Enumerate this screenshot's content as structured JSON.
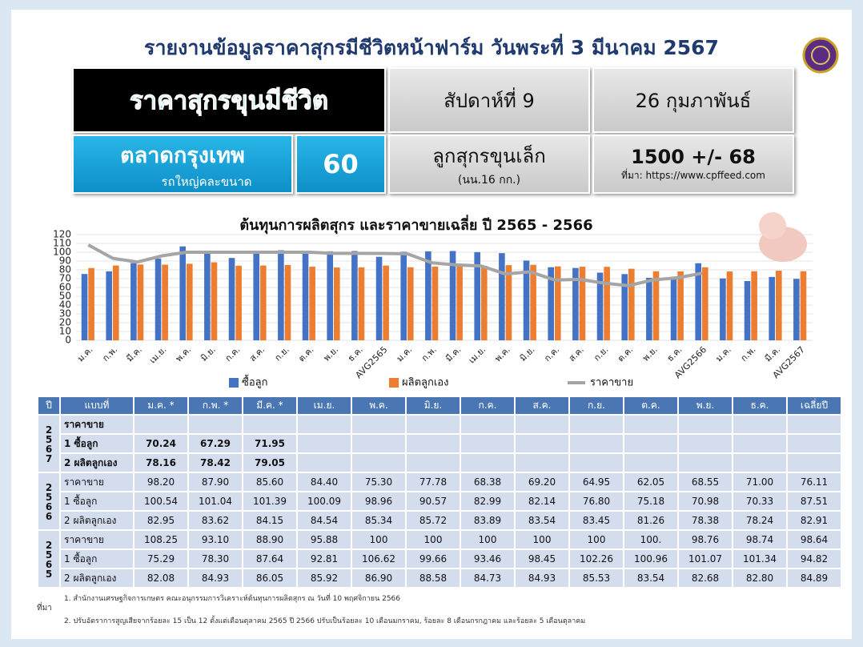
{
  "header": {
    "title": "รายงานข้อมูลราคาสุกรมีชีวิตหน้าฟาร์ม วันพระที่ 3 มีนาคม 2567",
    "box_main": "ราคาสุกรขุนมีชีวิต",
    "week": "สัปดาห์ที่ 9",
    "date": "26 กุมภาพันธ์",
    "market": "ตลาดกรุงเทพ",
    "market_note": "รถใหญ่คละขนาด",
    "market_price": "60",
    "piglet": "ลูกสุกรขุนเล็ก",
    "piglet_note": "(นน.16 กก.)",
    "piglet_price": "1500 +/- 68",
    "source": "ที่มา: https://www.cpffeed.com"
  },
  "chart_data": {
    "type": "bar",
    "title": "ต้นทุนการผลิตสุกร  และราคาขายเฉลี่ย ปี 2565 - 2566",
    "categories": [
      "ม.ค.",
      "ก.พ.",
      "มี.ค.",
      "เม.ย.",
      "พ.ค.",
      "มิ.ย.",
      "ก.ค.",
      "ส.ค.",
      "ก.ย.",
      "ต.ค.",
      "พ.ย.",
      "ธ.ค.",
      "AVG2565",
      "ม.ค.",
      "ก.พ.",
      "มี.ค.",
      "เม.ย.",
      "พ.ค.",
      "มิ.ย.",
      "ก.ค.",
      "ส.ค.",
      "ก.ย.",
      "ต.ค.",
      "พ.ย.",
      "ธ.ค.",
      "AVG2566",
      "ม.ค.",
      "ก.พ.",
      "มี.ค.",
      "AVG2567"
    ],
    "series": [
      {
        "name": "ซื้อลูก",
        "type": "bar",
        "color": "#4472c4",
        "values": [
          75.29,
          78.3,
          87.64,
          92.81,
          106.62,
          99.66,
          93.46,
          98.45,
          102.26,
          100.96,
          101.07,
          101.34,
          94.82,
          100.54,
          101.04,
          101.39,
          100.09,
          98.96,
          90.57,
          82.99,
          82.14,
          76.8,
          75.18,
          70.98,
          70.33,
          87.51,
          70.24,
          67.29,
          71.95,
          69.8
        ]
      },
      {
        "name": "ผลิตลูกเอง",
        "type": "bar",
        "color": "#ed7d31",
        "values": [
          82.08,
          84.93,
          86.05,
          85.92,
          86.9,
          88.58,
          84.73,
          84.93,
          85.53,
          83.54,
          82.68,
          82.8,
          84.89,
          82.95,
          83.62,
          84.15,
          84.54,
          85.34,
          85.72,
          83.89,
          83.54,
          83.45,
          81.26,
          78.38,
          78.24,
          82.91,
          78.16,
          78.42,
          79.05,
          78.5
        ]
      },
      {
        "name": "ราคาขาย",
        "type": "line",
        "color": "#a5a5a5",
        "values": [
          108.25,
          93.1,
          88.9,
          95.88,
          100,
          100,
          100,
          100,
          100,
          100,
          98.76,
          98.74,
          98.64,
          98.2,
          87.9,
          85.6,
          84.4,
          75.3,
          77.78,
          68.38,
          69.2,
          64.95,
          62.05,
          68.55,
          71.0,
          76.11,
          null,
          null,
          null,
          null
        ]
      }
    ],
    "ylim": [
      0,
      120
    ],
    "yticks": [
      0,
      10,
      20,
      30,
      40,
      50,
      60,
      70,
      80,
      90,
      100,
      110,
      120
    ],
    "grid": true,
    "legend": "bottom"
  },
  "table": {
    "columns": [
      "ปี",
      "แบบที่",
      "ม.ค. *",
      "ก.พ. *",
      "มี.ค. *",
      "เม.ย.",
      "พ.ค.",
      "มิ.ย.",
      "ก.ค.",
      "ส.ค.",
      "ก.ย.",
      "ต.ค.",
      "พ.ย.",
      "ธ.ค.",
      "เฉลี่ยปี"
    ],
    "groups": [
      {
        "year": "2567",
        "rows": [
          {
            "label": "ราคาขาย",
            "cells": [
              null,
              null,
              null,
              null,
              null,
              null,
              null,
              null,
              null,
              null,
              null,
              null,
              null
            ]
          },
          {
            "label": "1 ซื้อลูก",
            "cells": [
              "70.24",
              "67.29",
              "71.95",
              null,
              null,
              null,
              null,
              null,
              null,
              null,
              null,
              null,
              null
            ]
          },
          {
            "label": "2 ผลิตลูกเอง",
            "cells": [
              "78.16",
              "78.42",
              "79.05",
              null,
              null,
              null,
              null,
              null,
              null,
              null,
              null,
              null,
              null
            ]
          }
        ]
      },
      {
        "year": "2566",
        "rows": [
          {
            "label": "ราคาขาย",
            "cells": [
              "98.20",
              "87.90",
              "85.60",
              "84.40",
              "75.30",
              "77.78",
              "68.38",
              "69.20",
              "64.95",
              "62.05",
              "68.55",
              "71.00",
              "76.11"
            ]
          },
          {
            "label": "1 ซื้อลูก",
            "cells": [
              "100.54",
              "101.04",
              "101.39",
              "100.09",
              "98.96",
              "90.57",
              "82.99",
              "82.14",
              "76.80",
              "75.18",
              "70.98",
              "70.33",
              "87.51"
            ]
          },
          {
            "label": "2 ผลิตลูกเอง",
            "cells": [
              "82.95",
              "83.62",
              "84.15",
              "84.54",
              "85.34",
              "85.72",
              "83.89",
              "83.54",
              "83.45",
              "81.26",
              "78.38",
              "78.24",
              "82.91"
            ]
          }
        ]
      },
      {
        "year": "2565",
        "rows": [
          {
            "label": "ราคาขาย",
            "cells": [
              "108.25",
              "93.10",
              "88.90",
              "95.88",
              "100",
              "100",
              "100",
              "100",
              "100",
              "100.",
              "98.76",
              "98.74",
              "98.64"
            ]
          },
          {
            "label": "1 ซื้อลูก",
            "cells": [
              "75.29",
              "78.30",
              "87.64",
              "92.81",
              "106.62",
              "99.66",
              "93.46",
              "98.45",
              "102.26",
              "100.96",
              "101.07",
              "101.34",
              "94.82"
            ]
          },
          {
            "label": "2 ผลิตลูกเอง",
            "cells": [
              "82.08",
              "84.93",
              "86.05",
              "85.92",
              "86.90",
              "88.58",
              "84.73",
              "84.93",
              "85.53",
              "83.54",
              "82.68",
              "82.80",
              "84.89"
            ]
          }
        ]
      }
    ]
  },
  "notes": {
    "label": "ที่มา",
    "lines": [
      "1. สำนักงานเศรษฐกิจการเกษตร คณะอนุกรรมการวิเคราะห์ต้นทุนการผลิตสุกร  ณ วันที่ 10 พฤศจิกายน 2566",
      "2. ปรับอัตราการสูญเสียจากร้อยละ 15 เป็น 12 ตั้งแต่เดือนตุลาคม 2565 ปี 2566 ปรับเป็นร้อยละ 10 เดือนมกราคม, ร้อยละ 8 เดือนกรกฎาคม และร้อยละ 5 เดือนตุลาคม"
    ]
  }
}
